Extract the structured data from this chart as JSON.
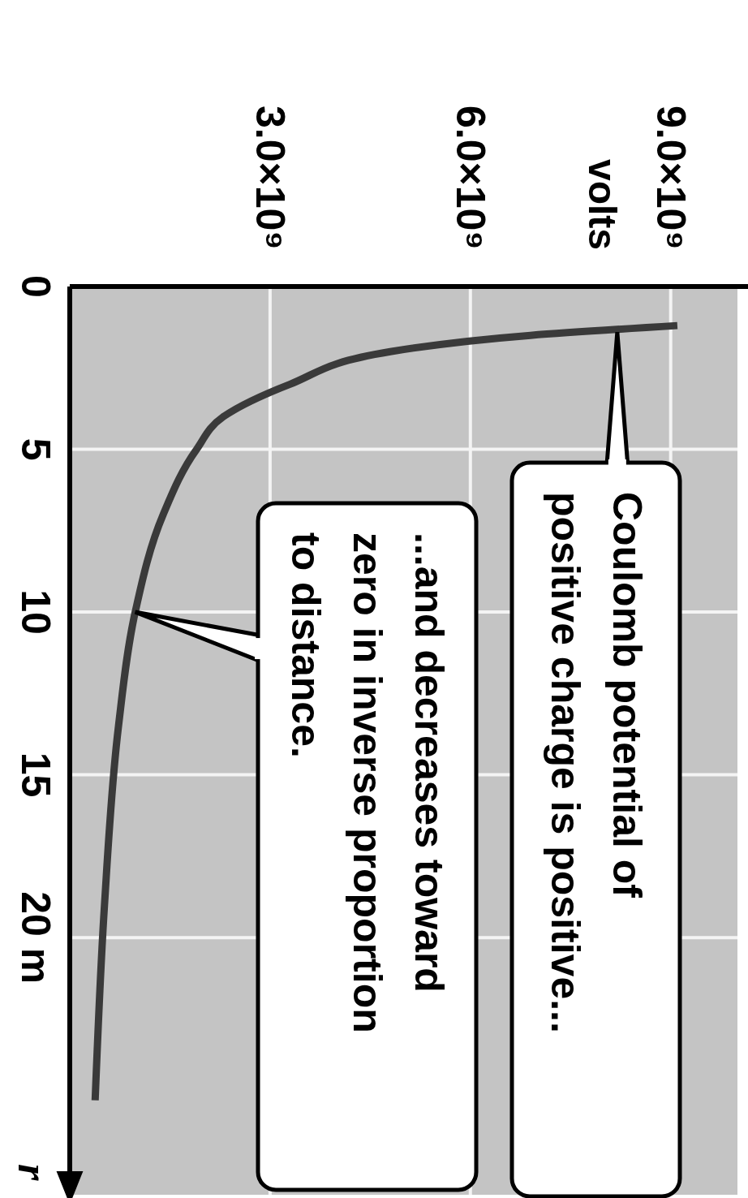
{
  "chart_data": {
    "type": "line",
    "ylabel": "r",
    "x": [
      9100000000,
      6900000000,
      4800000000,
      3300000000,
      2300000000,
      1900000000,
      1400000000,
      980000000,
      730000000,
      520000000,
      380000000
    ],
    "series": [
      {
        "color": "#3a3a3a",
        "values": [
          1.2,
          1.5,
          2,
          3,
          4,
          5,
          7,
          10,
          13.5,
          19,
          25
        ]
      }
    ],
    "xlim": [
      0,
      10000000000
    ],
    "ylim": [
      28,
      0
    ],
    "xticks": [
      {
        "value": 3000000000,
        "label": "3.0×10⁹"
      },
      {
        "value": 6000000000,
        "label": "6.0×10⁹"
      },
      {
        "value": 9000000000,
        "label": "9.0×10⁹"
      }
    ],
    "yticks": [
      0,
      5,
      10,
      15,
      {
        "value": 20,
        "label": "20 m"
      }
    ],
    "grid": true,
    "annotations": [
      "volts",
      {
        "text": "Coulomb potential of\npositive charge is positive...",
        "x": 8200000000,
        "y": 1.4
      },
      {
        "text": "...and decreases toward\nzero in inverse proportion\nto distance.",
        "x": 980000000,
        "y": 10
      }
    ]
  }
}
